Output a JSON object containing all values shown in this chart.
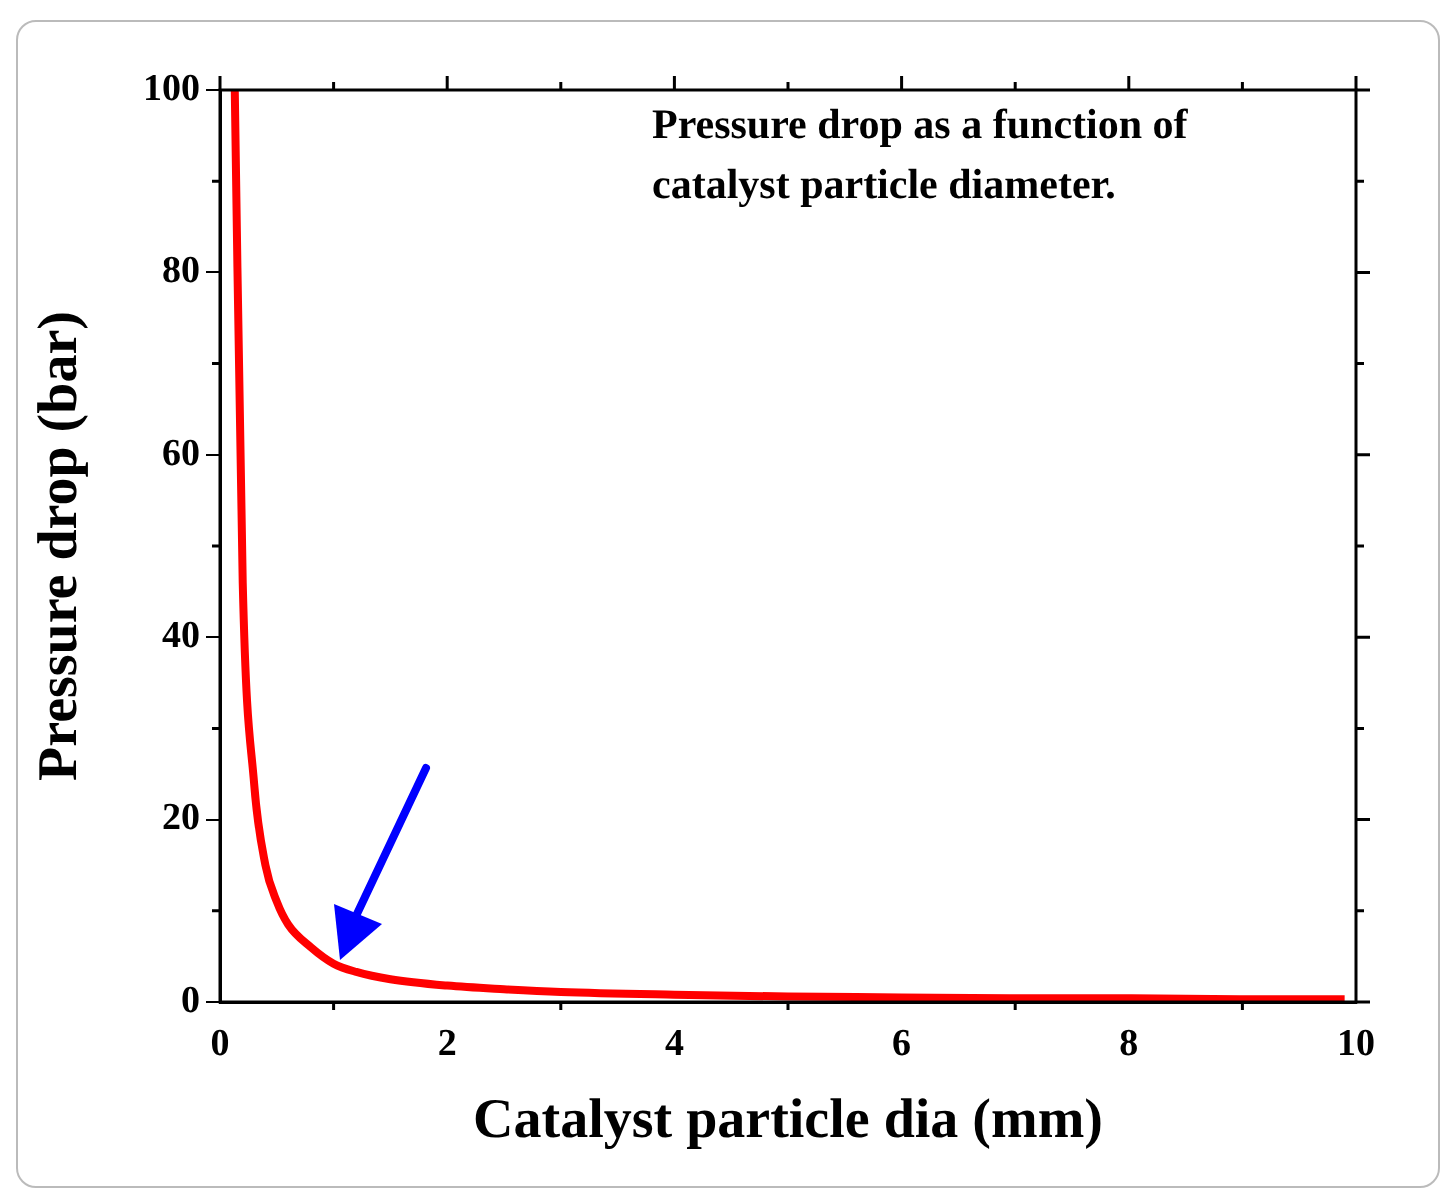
{
  "chart_data": {
    "type": "line",
    "xlabel": "Catalyst particle dia (mm)",
    "ylabel": "Pressure drop (bar)",
    "annotations": [
      "Pressure drop as a function of catalyst particle diameter."
    ],
    "series": [
      {
        "color": "#ff0000",
        "x": [
          0.13,
          0.2,
          0.3,
          0.4,
          0.5,
          0.6,
          0.8,
          1,
          1.2,
          1.5,
          2,
          2.5,
          3,
          4,
          5,
          6,
          7,
          8,
          9,
          9.9
        ],
        "values": [
          100,
          46,
          24,
          15,
          11,
          8.5,
          6,
          4.2,
          3.3,
          2.5,
          1.8,
          1.4,
          1.1,
          0.8,
          0.6,
          0.5,
          0.4,
          0.4,
          0.3,
          0.3
        ]
      }
    ],
    "xlim": [
      0,
      10
    ],
    "ylim": [
      0,
      100
    ],
    "xticks": [
      0,
      2,
      4,
      6,
      8,
      10
    ],
    "yticks": [
      0,
      20,
      40,
      60,
      80,
      100
    ],
    "grid": false,
    "legend": false,
    "marker": "none",
    "line_style": "solid"
  }
}
